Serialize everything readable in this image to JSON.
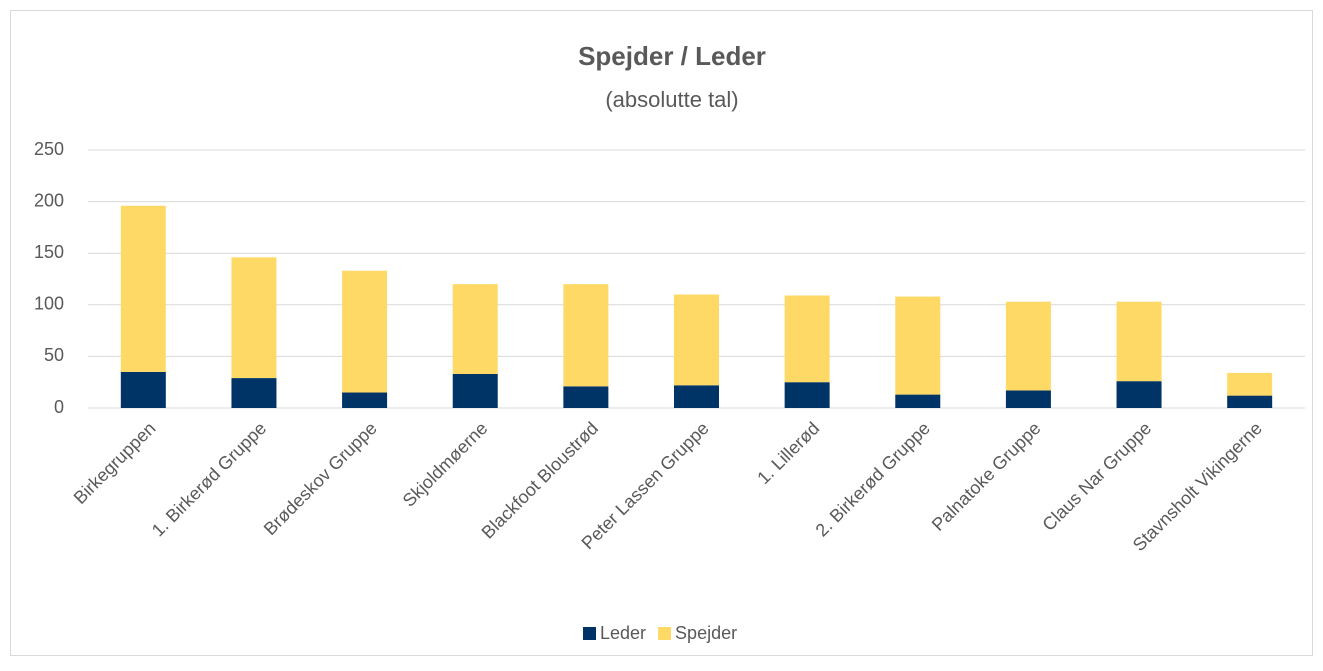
{
  "chart_data": {
    "type": "stacked_bar",
    "title": "Spejder / Leder",
    "subtitle": "(absolutte tal)",
    "categories": [
      "Birkegruppen",
      "1. Birkerød Gruppe",
      "Brødeskov Gruppe",
      "Skjoldmøerne",
      "Blackfoot Bloustrød",
      "Peter Lassen Gruppe",
      "1. Lillerød",
      "2. Birkerød Gruppe",
      "Palnatoke Gruppe",
      "Claus Nar Gruppe",
      "Stavnsholt Vikingerne"
    ],
    "series": [
      {
        "name": "Leder",
        "color": "#003366",
        "values": [
          35,
          29,
          15,
          33,
          21,
          22,
          25,
          13,
          17,
          26,
          12
        ]
      },
      {
        "name": "Spejder",
        "color": "#ffd966",
        "values": [
          161,
          117,
          118,
          87,
          99,
          88,
          84,
          95,
          86,
          77,
          22
        ]
      }
    ],
    "ylim": [
      0,
      250
    ],
    "yticks": [
      0,
      50,
      100,
      150,
      200,
      250
    ],
    "grid": true,
    "legend": "bottom"
  }
}
